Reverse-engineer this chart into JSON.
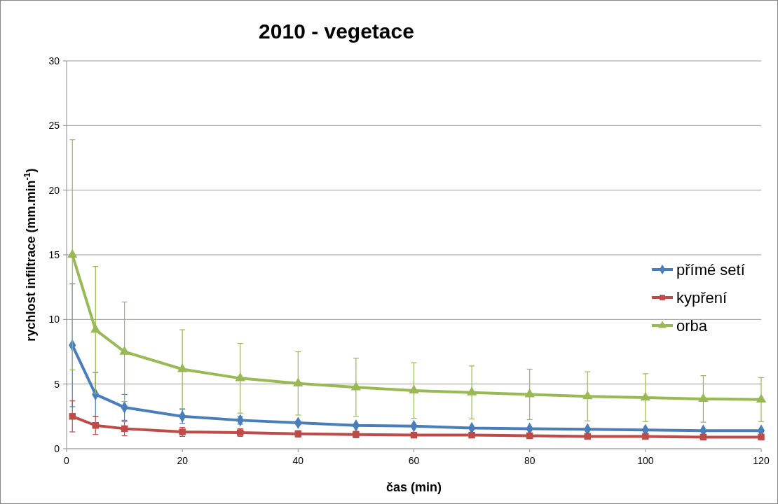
{
  "chart_data": {
    "type": "line",
    "title": "2010 - vegetace",
    "xlabel": "čas (min)",
    "ylabel": "rychlost infiltrace (mm.min$^{-1}$)",
    "x": [
      1,
      5,
      10,
      20,
      30,
      40,
      50,
      60,
      70,
      80,
      90,
      100,
      110,
      120
    ],
    "xlim": [
      0,
      120
    ],
    "xticks": [
      0,
      20,
      40,
      60,
      80,
      100,
      120
    ],
    "ylim": [
      0,
      30
    ],
    "yticks": [
      0,
      5,
      10,
      15,
      20,
      25,
      30
    ],
    "grid": "y",
    "legend": "right",
    "series": [
      {
        "name": "přímé setí",
        "color": "#4a7ebb",
        "marker": "diamond",
        "values": [
          8.0,
          4.2,
          3.2,
          2.5,
          2.2,
          2.0,
          1.8,
          1.75,
          1.6,
          1.55,
          1.5,
          1.45,
          1.4,
          1.4
        ],
        "errors": [
          4.75,
          1.7,
          1.0,
          0.55,
          0.3,
          0.15,
          null,
          null,
          null,
          null,
          null,
          null,
          null,
          null
        ]
      },
      {
        "name": "kypření",
        "color": "#be4b48",
        "marker": "square",
        "values": [
          2.5,
          1.8,
          1.55,
          1.3,
          1.25,
          1.15,
          1.1,
          1.05,
          1.05,
          1.0,
          0.95,
          0.95,
          0.9,
          0.9
        ],
        "errors": [
          1.2,
          0.7,
          0.55,
          0.35,
          0.3,
          0.25,
          0.25,
          0.2,
          0.2,
          0.2,
          0.2,
          0.2,
          0.2,
          0.2
        ]
      },
      {
        "name": "orba",
        "color": "#98b954",
        "marker": "triangle",
        "values": [
          15.0,
          9.2,
          7.5,
          6.15,
          5.45,
          5.05,
          4.75,
          4.5,
          4.35,
          4.2,
          4.05,
          3.95,
          3.85,
          3.8
        ],
        "errors": [
          8.9,
          4.9,
          3.85,
          3.05,
          2.7,
          2.45,
          2.25,
          2.15,
          2.05,
          1.95,
          1.9,
          1.85,
          1.8,
          1.7
        ]
      }
    ]
  }
}
